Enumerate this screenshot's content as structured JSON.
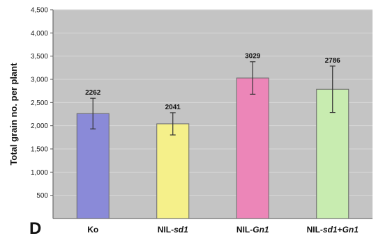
{
  "panel_label": "D",
  "chart_data": {
    "type": "bar",
    "title": "",
    "xlabel": "",
    "ylabel": "Total grain no. per plant",
    "ylim": [
      0,
      4500
    ],
    "yticks": [
      500,
      1000,
      1500,
      2000,
      2500,
      3000,
      3500,
      4000,
      4500
    ],
    "ytick_labels": [
      "500",
      "1,000",
      "1,500",
      "2,000",
      "2,500",
      "3,000",
      "3,500",
      "4,000",
      "4,500"
    ],
    "grid": true,
    "categories": [
      "Ko",
      "NIL-sd1",
      "NIL-Gn1",
      "NIL-sd1+Gn1"
    ],
    "category_parts": [
      [
        {
          "text": "Ko",
          "italic": false
        }
      ],
      [
        {
          "text": "NIL-",
          "italic": false
        },
        {
          "text": "sd1",
          "italic": true
        }
      ],
      [
        {
          "text": "NIL-",
          "italic": false
        },
        {
          "text": "Gn1",
          "italic": true
        }
      ],
      [
        {
          "text": "NIL-",
          "italic": false
        },
        {
          "text": "sd1",
          "italic": true
        },
        {
          "text": "+",
          "italic": false
        },
        {
          "text": "Gn1",
          "italic": true
        }
      ]
    ],
    "values": [
      2262,
      2041,
      3029,
      2786
    ],
    "value_labels": [
      "2262",
      "2041",
      "3029",
      "2786"
    ],
    "errors": [
      330,
      240,
      350,
      500
    ],
    "colors": [
      "#8a8ad8",
      "#f5f08a",
      "#ec86b8",
      "#c8ecb0"
    ],
    "plot_background": "#c4c4c4",
    "grid_color": "#d8d8d8"
  }
}
